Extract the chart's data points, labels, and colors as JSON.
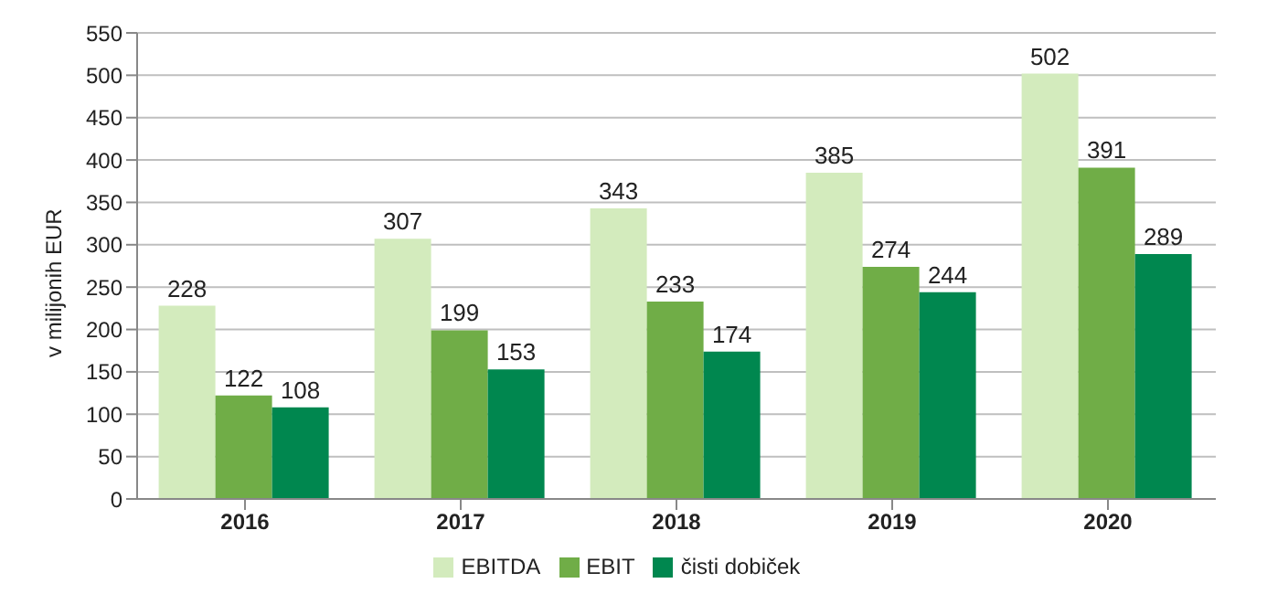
{
  "chart_data": {
    "type": "bar",
    "ylabel": "v milijonih EUR",
    "categories": [
      "2016",
      "2017",
      "2018",
      "2019",
      "2020"
    ],
    "series": [
      {
        "name": "EBITDA",
        "color": "#d3ebbd",
        "values": [
          228,
          307,
          343,
          385,
          502
        ]
      },
      {
        "name": "EBIT",
        "color": "#70ad47",
        "values": [
          122,
          199,
          233,
          274,
          391
        ]
      },
      {
        "name": "čisti dobiček",
        "color": "#00874f",
        "values": [
          108,
          153,
          174,
          244,
          289
        ]
      }
    ],
    "ylim": [
      0,
      550
    ],
    "yticks": [
      0,
      50,
      100,
      150,
      200,
      250,
      300,
      350,
      400,
      450,
      500,
      550
    ],
    "grid": "y",
    "legend": "bottom",
    "data_labels": true
  }
}
